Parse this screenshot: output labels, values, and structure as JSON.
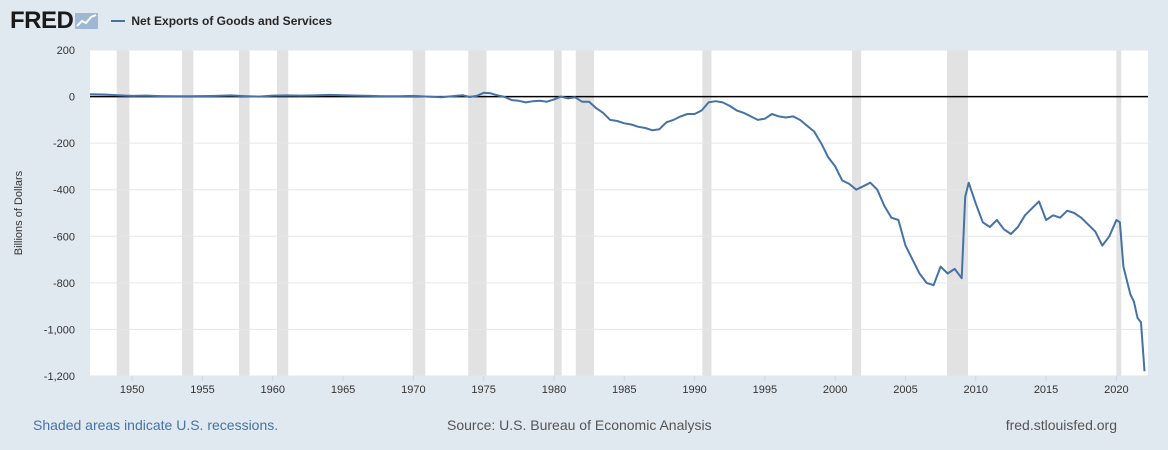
{
  "logo": {
    "text": "FRED",
    "icon": "fred-chart-icon"
  },
  "colors": {
    "series": "#4572a7",
    "recession": "#e2e2e2",
    "plot_bg": "#ffffff",
    "page_bg": "#e1e9f0",
    "zero_line": "#000000"
  },
  "footer": {
    "left": "Shaded areas indicate U.S. recessions.",
    "source": "Source: U.S. Bureau of Economic Analysis",
    "site": "fred.stlouisfed.org"
  },
  "chart_data": {
    "type": "line",
    "title": "",
    "xlabel": "",
    "ylabel": "Billions of Dollars",
    "xlim": [
      1947,
      2022.25
    ],
    "ylim": [
      -1200,
      200
    ],
    "xticks": [
      1950,
      1955,
      1960,
      1965,
      1970,
      1975,
      1980,
      1985,
      1990,
      1995,
      2000,
      2005,
      2010,
      2015,
      2020
    ],
    "yticks": [
      200,
      0,
      -200,
      -400,
      -600,
      -800,
      -1000,
      -1200
    ],
    "ytick_labels": [
      "200",
      "0",
      "-200",
      "-400",
      "-600",
      "-800",
      "-1,000",
      "-1,200"
    ],
    "grid": true,
    "legend_position": "top-left",
    "recessions": [
      [
        1948.9,
        1949.8
      ],
      [
        1953.55,
        1954.35
      ],
      [
        1957.6,
        1958.35
      ],
      [
        1960.3,
        1961.1
      ],
      [
        1969.95,
        1970.85
      ],
      [
        1973.9,
        1975.2
      ],
      [
        1980.0,
        1980.55
      ],
      [
        1981.55,
        1982.85
      ],
      [
        1990.55,
        1991.2
      ],
      [
        2001.2,
        2001.85
      ],
      [
        2007.95,
        2009.45
      ],
      [
        2020.0,
        2020.35
      ]
    ],
    "series": [
      {
        "name": "Net Exports of Goods and Services",
        "x": [
          1947.0,
          1948.0,
          1949.0,
          1950.0,
          1951.0,
          1952.0,
          1953.0,
          1954.0,
          1955.0,
          1956.0,
          1957.0,
          1958.0,
          1959.0,
          1960.0,
          1961.0,
          1962.0,
          1963.0,
          1964.0,
          1965.0,
          1966.0,
          1967.0,
          1968.0,
          1969.0,
          1970.0,
          1971.0,
          1972.0,
          1973.0,
          1973.5,
          1974.0,
          1974.5,
          1975.0,
          1975.5,
          1976.0,
          1976.5,
          1977.0,
          1977.5,
          1978.0,
          1978.5,
          1979.0,
          1979.5,
          1980.0,
          1980.5,
          1981.0,
          1981.5,
          1982.0,
          1982.5,
          1983.0,
          1983.5,
          1984.0,
          1984.5,
          1985.0,
          1985.5,
          1986.0,
          1986.5,
          1987.0,
          1987.5,
          1988.0,
          1988.5,
          1989.0,
          1989.5,
          1990.0,
          1990.5,
          1991.0,
          1991.5,
          1992.0,
          1992.5,
          1993.0,
          1993.5,
          1994.0,
          1994.5,
          1995.0,
          1995.5,
          1996.0,
          1996.5,
          1997.0,
          1997.5,
          1998.0,
          1998.5,
          1999.0,
          1999.5,
          2000.0,
          2000.5,
          2001.0,
          2001.5,
          2002.0,
          2002.5,
          2003.0,
          2003.5,
          2004.0,
          2004.5,
          2005.0,
          2005.5,
          2006.0,
          2006.5,
          2007.0,
          2007.5,
          2008.0,
          2008.5,
          2009.0,
          2009.25,
          2009.5,
          2010.0,
          2010.5,
          2011.0,
          2011.5,
          2012.0,
          2012.5,
          2013.0,
          2013.5,
          2014.0,
          2014.5,
          2015.0,
          2015.5,
          2016.0,
          2016.5,
          2017.0,
          2017.5,
          2018.0,
          2018.5,
          2019.0,
          2019.5,
          2020.0,
          2020.25,
          2020.5,
          2021.0,
          2021.25,
          2021.5,
          2021.75,
          2022.0
        ],
        "values": [
          10,
          9,
          6,
          3,
          4,
          2,
          1,
          1,
          2,
          3,
          5,
          2,
          0,
          4,
          5,
          4,
          5,
          7,
          6,
          4,
          3,
          1,
          1,
          3,
          0,
          -3,
          3,
          6,
          -2,
          3,
          16,
          14,
          5,
          -2,
          -15,
          -18,
          -25,
          -20,
          -18,
          -22,
          -12,
          0,
          -8,
          -3,
          -22,
          -22,
          -50,
          -70,
          -100,
          -105,
          -115,
          -120,
          -130,
          -135,
          -145,
          -140,
          -110,
          -100,
          -85,
          -75,
          -75,
          -60,
          -25,
          -20,
          -25,
          -40,
          -60,
          -70,
          -85,
          -100,
          -95,
          -75,
          -85,
          -90,
          -85,
          -100,
          -125,
          -150,
          -200,
          -260,
          -300,
          -360,
          -375,
          -400,
          -385,
          -370,
          -400,
          -470,
          -520,
          -530,
          -640,
          -700,
          -760,
          -800,
          -810,
          -730,
          -760,
          -740,
          -780,
          -430,
          -370,
          -460,
          -540,
          -560,
          -530,
          -570,
          -590,
          -560,
          -510,
          -480,
          -450,
          -530,
          -510,
          -520,
          -490,
          -500,
          -520,
          -550,
          -580,
          -640,
          -600,
          -530,
          -540,
          -730,
          -850,
          -880,
          -950,
          -970,
          -1180
        ]
      }
    ]
  }
}
